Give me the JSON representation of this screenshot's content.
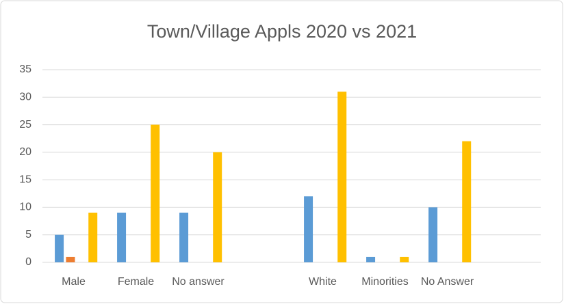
{
  "chart_data": {
    "type": "bar",
    "title": "Town/Village Appls 2020 vs 2021",
    "categories": [
      "Male",
      "Female",
      "No answer",
      null,
      "White",
      "Minorities",
      "No Answer",
      null
    ],
    "series": [
      {
        "color": "#5b9bd5",
        "values": [
          5,
          9,
          9,
          null,
          12,
          1,
          10,
          null
        ]
      },
      {
        "color": "#ed7d31",
        "values": [
          1,
          0,
          0,
          null,
          0,
          0,
          0,
          null
        ]
      },
      {
        "color": "#ffc000",
        "values": [
          9,
          25,
          20,
          null,
          31,
          1,
          22,
          null
        ]
      }
    ],
    "ylim": [
      0,
      35
    ],
    "yticks": [
      0,
      5,
      10,
      15,
      20,
      25,
      30,
      35
    ],
    "grid": true
  }
}
